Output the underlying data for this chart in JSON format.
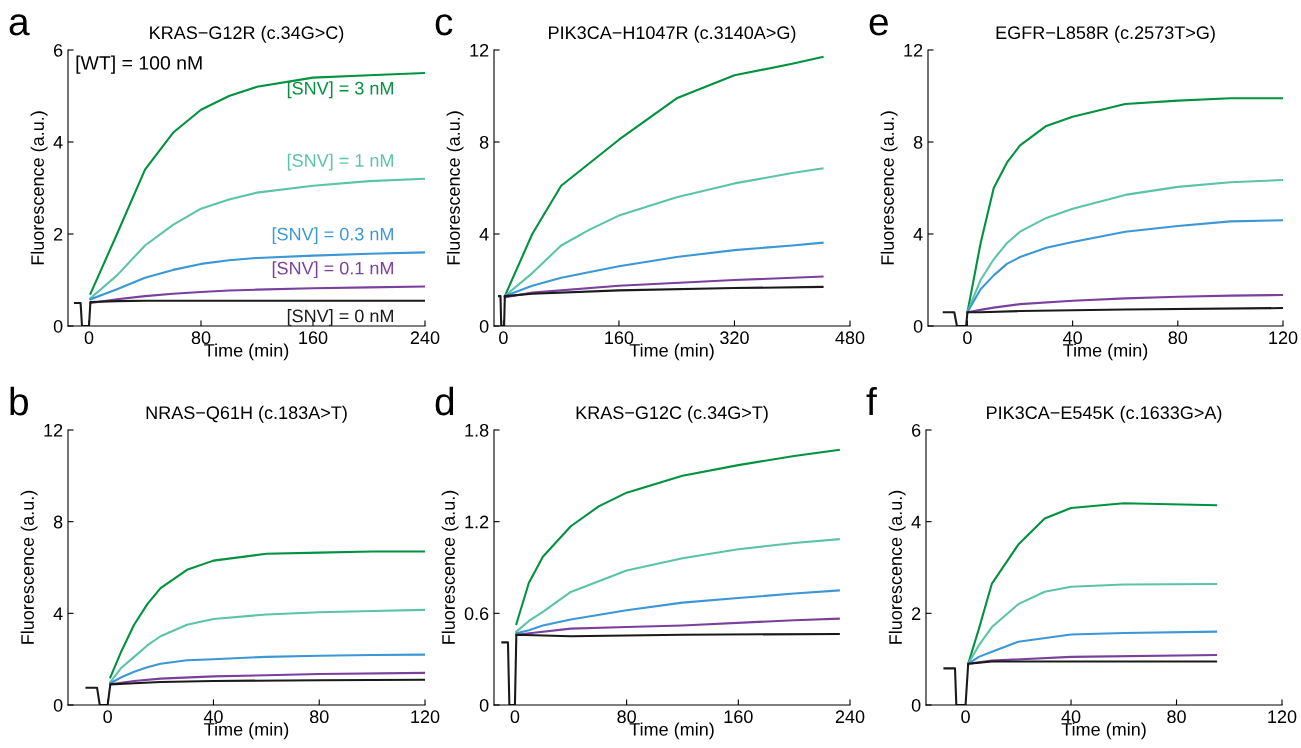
{
  "chart_data": [
    {
      "type": "line",
      "title": "KRAS−G12R (c.34G>C)",
      "xlabel": "Time (min)",
      "ylabel": "Fluorescence (a.u.)",
      "annotations": [
        "a",
        "[WT] = 100 nM"
      ],
      "xlim": [
        -15,
        240
      ],
      "xticks": [
        0,
        80,
        160,
        240
      ],
      "ylim": [
        0,
        6
      ],
      "yticks": [
        0,
        2,
        4,
        6
      ],
      "grid": false,
      "legend": false,
      "series": [
        {
          "name": "[SNV] = 3 nM",
          "color": "#00923f",
          "x": [
            1,
            20,
            40,
            60,
            80,
            100,
            120,
            160,
            200,
            240
          ],
          "values": [
            0.7,
            2.0,
            3.4,
            4.2,
            4.7,
            5.0,
            5.2,
            5.4,
            5.45,
            5.5
          ]
        },
        {
          "name": "[SNV] = 1 nM",
          "color": "#5bc4a8",
          "x": [
            1,
            20,
            40,
            60,
            80,
            100,
            120,
            160,
            200,
            240
          ],
          "values": [
            0.6,
            1.1,
            1.75,
            2.2,
            2.55,
            2.75,
            2.9,
            3.05,
            3.15,
            3.2
          ]
        },
        {
          "name": "[SNV] = 0.3 nM",
          "color": "#3b97d6",
          "x": [
            1,
            20,
            40,
            60,
            80,
            100,
            120,
            160,
            200,
            240
          ],
          "values": [
            0.58,
            0.8,
            1.05,
            1.22,
            1.35,
            1.43,
            1.48,
            1.53,
            1.57,
            1.6
          ]
        },
        {
          "name": "[SNV] = 0.1 nM",
          "color": "#7b3f9d",
          "x": [
            1,
            20,
            40,
            60,
            80,
            100,
            120,
            160,
            200,
            240
          ],
          "values": [
            0.5,
            0.58,
            0.65,
            0.7,
            0.74,
            0.77,
            0.79,
            0.82,
            0.84,
            0.86
          ]
        },
        {
          "name": "[SNV] = 0 nM",
          "color": "#1a1a1a",
          "x": [
            -10,
            -6,
            -5,
            0,
            1,
            20,
            40,
            80,
            160,
            240
          ],
          "values": [
            0.5,
            0.5,
            0,
            0,
            0.52,
            0.54,
            0.55,
            0.55,
            0.55,
            0.55
          ]
        }
      ]
    },
    {
      "type": "line",
      "title": "PIK3CA−H1047R (c.3140A>G)",
      "xlabel": "Time (min)",
      "ylabel": "Fluorescence (a.u.)",
      "annotations": [
        "c"
      ],
      "xlim": [
        -13,
        480
      ],
      "xticks": [
        0,
        160,
        320,
        480
      ],
      "ylim": [
        0,
        12
      ],
      "yticks": [
        0,
        4,
        8,
        12
      ],
      "grid": false,
      "legend": false,
      "series": [
        {
          "color": "#00923f",
          "x": [
            2,
            40,
            80,
            160,
            240,
            320,
            400,
            442
          ],
          "values": [
            1.3,
            4.0,
            6.1,
            8.1,
            9.9,
            10.9,
            11.4,
            11.7
          ]
        },
        {
          "color": "#5bc4a8",
          "x": [
            2,
            40,
            80,
            120,
            160,
            240,
            320,
            400,
            442
          ],
          "values": [
            1.3,
            2.3,
            3.5,
            4.2,
            4.8,
            5.6,
            6.2,
            6.65,
            6.85
          ]
        },
        {
          "color": "#3b97d6",
          "x": [
            2,
            40,
            80,
            160,
            240,
            320,
            400,
            442
          ],
          "values": [
            1.3,
            1.75,
            2.1,
            2.6,
            3.0,
            3.3,
            3.5,
            3.62
          ]
        },
        {
          "color": "#7b3f9d",
          "x": [
            2,
            40,
            160,
            320,
            442
          ],
          "values": [
            1.25,
            1.45,
            1.75,
            2.0,
            2.15
          ]
        },
        {
          "color": "#1a1a1a",
          "x": [
            -6,
            -4,
            -3,
            1,
            2,
            40,
            160,
            320,
            442
          ],
          "values": [
            1.3,
            1.3,
            0,
            0,
            1.3,
            1.4,
            1.55,
            1.65,
            1.7
          ]
        }
      ]
    },
    {
      "type": "line",
      "title": "EGFR−L858R (c.2573T>G)",
      "xlabel": "Time (min)",
      "ylabel": "Fluorescence (a.u.)",
      "annotations": [
        "e"
      ],
      "xlim": [
        -15,
        120
      ],
      "xticks": [
        0,
        40,
        80,
        120
      ],
      "ylim": [
        0,
        12
      ],
      "yticks": [
        0,
        4,
        8,
        12
      ],
      "grid": false,
      "legend": false,
      "series": [
        {
          "color": "#00923f",
          "x": [
            0,
            5,
            10,
            15,
            20,
            30,
            40,
            60,
            80,
            100,
            120
          ],
          "values": [
            0.6,
            3.6,
            6.0,
            7.1,
            7.85,
            8.7,
            9.1,
            9.65,
            9.8,
            9.9,
            9.9
          ]
        },
        {
          "color": "#5bc4a8",
          "x": [
            0,
            5,
            10,
            15,
            20,
            30,
            40,
            60,
            80,
            100,
            120
          ],
          "values": [
            0.6,
            2.0,
            2.9,
            3.6,
            4.1,
            4.7,
            5.1,
            5.7,
            6.05,
            6.25,
            6.35
          ]
        },
        {
          "color": "#3b97d6",
          "x": [
            0,
            5,
            10,
            15,
            20,
            30,
            40,
            60,
            80,
            100,
            120
          ],
          "values": [
            0.6,
            1.6,
            2.2,
            2.7,
            3.0,
            3.4,
            3.65,
            4.1,
            4.35,
            4.55,
            4.6
          ]
        },
        {
          "color": "#7b3f9d",
          "x": [
            0,
            5,
            10,
            20,
            40,
            60,
            80,
            100,
            120
          ],
          "values": [
            0.6,
            0.7,
            0.8,
            0.95,
            1.1,
            1.2,
            1.27,
            1.32,
            1.35
          ]
        },
        {
          "color": "#1a1a1a",
          "x": [
            -9,
            -5,
            -4,
            -0.5,
            0,
            5,
            20,
            60,
            120
          ],
          "values": [
            0.6,
            0.6,
            0,
            0,
            0.6,
            0.6,
            0.65,
            0.72,
            0.78
          ]
        }
      ]
    },
    {
      "type": "line",
      "title": "NRAS−Q61H (c.183A>T)",
      "xlabel": "Time (min)",
      "ylabel": "Fluorescence (a.u.)",
      "annotations": [
        "b"
      ],
      "xlim": [
        -15,
        120
      ],
      "xticks": [
        0,
        40,
        80,
        120
      ],
      "ylim": [
        0,
        12
      ],
      "yticks": [
        0,
        4,
        8,
        12
      ],
      "grid": false,
      "legend": false,
      "series": [
        {
          "color": "#00923f",
          "x": [
            1,
            5,
            10,
            15,
            20,
            30,
            40,
            60,
            80,
            100,
            120
          ],
          "values": [
            1.2,
            2.3,
            3.5,
            4.4,
            5.1,
            5.9,
            6.3,
            6.6,
            6.65,
            6.7,
            6.7
          ]
        },
        {
          "color": "#5bc4a8",
          "x": [
            1,
            5,
            10,
            15,
            20,
            30,
            40,
            60,
            80,
            100,
            120
          ],
          "values": [
            1.0,
            1.6,
            2.1,
            2.6,
            3.0,
            3.5,
            3.75,
            3.95,
            4.05,
            4.1,
            4.15
          ]
        },
        {
          "color": "#3b97d6",
          "x": [
            1,
            5,
            10,
            15,
            20,
            30,
            40,
            60,
            80,
            100,
            120
          ],
          "values": [
            0.95,
            1.2,
            1.45,
            1.65,
            1.8,
            1.95,
            2.0,
            2.1,
            2.15,
            2.18,
            2.2
          ]
        },
        {
          "color": "#7b3f9d",
          "x": [
            1,
            10,
            20,
            40,
            60,
            80,
            120
          ],
          "values": [
            0.9,
            1.05,
            1.15,
            1.25,
            1.3,
            1.35,
            1.4
          ]
        },
        {
          "color": "#1a1a1a",
          "x": [
            -8,
            -4,
            -3,
            0,
            1,
            10,
            20,
            40,
            80,
            120
          ],
          "values": [
            0.75,
            0.75,
            0,
            0,
            0.9,
            0.95,
            1.0,
            1.05,
            1.08,
            1.1
          ]
        }
      ]
    },
    {
      "type": "line",
      "title": "KRAS−G12C (c.34G>T)",
      "xlabel": "Time (min)",
      "ylabel": "Fluorescence (a.u.)",
      "annotations": [
        "d"
      ],
      "xlim": [
        -15,
        240
      ],
      "xticks": [
        0,
        80,
        160,
        240
      ],
      "ylim": [
        0,
        1.8
      ],
      "yticks": [
        0,
        0.6,
        1.2,
        1.8
      ],
      "grid": false,
      "legend": false,
      "series": [
        {
          "color": "#00923f",
          "x": [
            1,
            10,
            20,
            40,
            60,
            80,
            120,
            160,
            200,
            232
          ],
          "values": [
            0.53,
            0.8,
            0.97,
            1.17,
            1.3,
            1.39,
            1.5,
            1.57,
            1.63,
            1.67
          ]
        },
        {
          "color": "#5bc4a8",
          "x": [
            1,
            10,
            20,
            40,
            80,
            120,
            160,
            200,
            232
          ],
          "values": [
            0.48,
            0.55,
            0.61,
            0.74,
            0.88,
            0.96,
            1.02,
            1.06,
            1.085
          ]
        },
        {
          "color": "#3b97d6",
          "x": [
            1,
            10,
            20,
            40,
            80,
            120,
            160,
            200,
            232
          ],
          "values": [
            0.47,
            0.49,
            0.52,
            0.56,
            0.62,
            0.67,
            0.7,
            0.73,
            0.75
          ]
        },
        {
          "color": "#7b3f9d",
          "x": [
            1,
            40,
            80,
            120,
            200,
            232
          ],
          "values": [
            0.46,
            0.5,
            0.51,
            0.52,
            0.555,
            0.565
          ]
        },
        {
          "color": "#1a1a1a",
          "x": [
            -9,
            -5,
            -4,
            0,
            1,
            40,
            120,
            232
          ],
          "values": [
            0.41,
            0.41,
            0,
            0,
            0.46,
            0.45,
            0.46,
            0.465
          ]
        }
      ]
    },
    {
      "type": "line",
      "title": "PIK3CA−E545K (c.1633G>A)",
      "xlabel": "Time (min)",
      "ylabel": "Fluorescence (a.u.)",
      "annotations": [
        "f"
      ],
      "xlim": [
        -15,
        120
      ],
      "xticks": [
        0,
        40,
        80,
        120
      ],
      "ylim": [
        0,
        6
      ],
      "yticks": [
        0,
        2,
        4,
        6
      ],
      "grid": false,
      "legend": false,
      "series": [
        {
          "color": "#00923f",
          "x": [
            1,
            5,
            10,
            20,
            30,
            40,
            60,
            95
          ],
          "values": [
            0.9,
            1.65,
            2.65,
            3.5,
            4.07,
            4.3,
            4.4,
            4.36
          ]
        },
        {
          "color": "#5bc4a8",
          "x": [
            1,
            5,
            10,
            20,
            30,
            40,
            60,
            95
          ],
          "values": [
            0.9,
            1.3,
            1.7,
            2.2,
            2.47,
            2.58,
            2.63,
            2.64
          ]
        },
        {
          "color": "#3b97d6",
          "x": [
            1,
            5,
            10,
            20,
            40,
            60,
            95
          ],
          "values": [
            0.9,
            1.05,
            1.16,
            1.38,
            1.54,
            1.57,
            1.6
          ]
        },
        {
          "color": "#7b3f9d",
          "x": [
            1,
            5,
            10,
            40,
            95
          ],
          "values": [
            0.9,
            0.93,
            0.97,
            1.05,
            1.09
          ]
        },
        {
          "color": "#1a1a1a",
          "x": [
            -8,
            -4,
            -3.5,
            0,
            1,
            10,
            95
          ],
          "values": [
            0.8,
            0.8,
            0,
            0,
            0.9,
            0.95,
            0.95
          ]
        }
      ]
    }
  ]
}
